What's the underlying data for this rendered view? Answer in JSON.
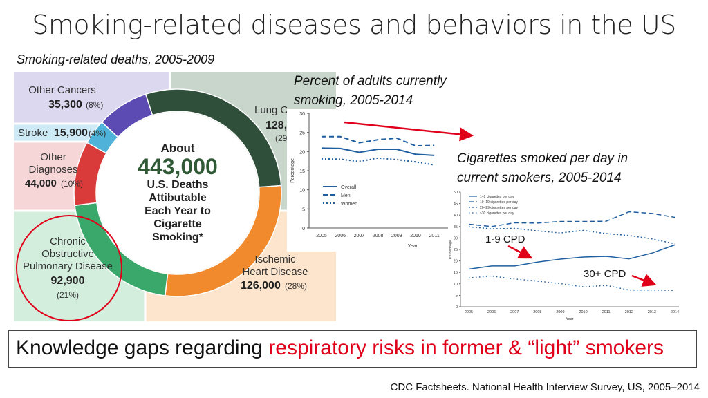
{
  "title": "Smoking-related diseases and behaviors in the US",
  "captions": {
    "deaths": "Smoking-related deaths, 2005-2009",
    "adults": "Percent of adults currently smoking, 2005-2014",
    "cigs": "Cigarettes smoked per day in current smokers, 2005-2014"
  },
  "infographic": {
    "center": {
      "line1": "About",
      "line2": "443,000",
      "line3": "U.S. Deaths",
      "line4": "Attibutable",
      "line5": "Each Year to",
      "line6": "Cigarette",
      "line7": "Smoking*"
    },
    "segments": [
      {
        "label1": "Other Cancers",
        "count": "35,300",
        "pct": "(8%)",
        "color": "#5b4bb3"
      },
      {
        "label1": "Stroke",
        "count": "15,900",
        "pct": "(4%)",
        "color": "#4fb3d9"
      },
      {
        "label1": "Other",
        "label2": "Diagnoses",
        "count": "44,000",
        "pct": "(10%)",
        "color": "#d93a3a"
      },
      {
        "label1": "Chronic",
        "label2": "Obstructive",
        "label3": "Pulmonary Disease",
        "count": "92,900",
        "pct": "(21%)",
        "color": "#3aa86b"
      },
      {
        "label1": "Ischemic",
        "label2": "Heart Disease",
        "count": "126,000",
        "pct": "(28%)",
        "color": "#f08a2c"
      },
      {
        "label1": "Lung C",
        "count": "128,9",
        "pct": "(29",
        "color": "#2f4f3a"
      }
    ]
  },
  "chart_data": [
    {
      "type": "line",
      "title": "Percent of adults currently smoking, 2005-2014",
      "xlabel": "Year",
      "ylabel": "Percentage",
      "x": [
        2005,
        2006,
        2007,
        2008,
        2009,
        2010,
        2011
      ],
      "ylim": [
        0,
        30
      ],
      "yticks": [
        0,
        5,
        10,
        15,
        20,
        25,
        30
      ],
      "series": [
        {
          "name": "Overall",
          "style": "solid",
          "values": [
            20.9,
            20.8,
            19.8,
            20.6,
            20.6,
            19.3,
            19.0
          ]
        },
        {
          "name": "Men",
          "style": "dashed",
          "values": [
            23.9,
            23.9,
            22.3,
            23.1,
            23.5,
            21.5,
            21.6
          ]
        },
        {
          "name": "Women",
          "style": "dotted",
          "values": [
            18.1,
            18.0,
            17.4,
            18.3,
            17.9,
            17.3,
            16.5
          ]
        }
      ]
    },
    {
      "type": "line",
      "title": "Cigarettes smoked per day in current smokers, 2005-2014",
      "xlabel": "Year",
      "ylabel": "Percentage",
      "x": [
        2005,
        2006,
        2007,
        2008,
        2009,
        2010,
        2011,
        2012,
        2013,
        2014
      ],
      "ylim": [
        0,
        50
      ],
      "yticks": [
        0,
        5,
        10,
        15,
        20,
        25,
        30,
        35,
        40,
        45,
        50
      ],
      "series": [
        {
          "name": "1–9 cigarettes per day",
          "style": "solid",
          "values": [
            16.4,
            17.8,
            17.8,
            19.5,
            20.8,
            21.7,
            22.0,
            20.9,
            23.4,
            27.0
          ]
        },
        {
          "name": "10–19 cigarettes per day",
          "style": "dashed",
          "values": [
            36.0,
            35.0,
            36.6,
            36.5,
            37.2,
            37.2,
            37.3,
            41.4,
            40.7,
            39.0
          ]
        },
        {
          "name": "20–29 cigarettes per day",
          "style": "dotted",
          "values": [
            34.9,
            34.0,
            34.2,
            33.1,
            32.2,
            33.3,
            31.9,
            31.1,
            29.6,
            27.5
          ]
        },
        {
          "name": "≥30 cigarettes per day",
          "style": "dotted-sparse",
          "values": [
            12.6,
            13.4,
            12.1,
            11.2,
            10.1,
            8.7,
            9.3,
            7.3,
            7.3,
            7.1
          ]
        }
      ]
    }
  ],
  "annotations": {
    "cpd_low": "1-9 CPD",
    "cpd_high": "30+ CPD",
    "arrow_color": "#e0001a"
  },
  "knowledge_gap": {
    "prefix": "Knowledge gaps regarding ",
    "highlight": "respiratory risks in former & “light” smokers"
  },
  "source": "CDC Factsheets. National Health Interview Survey, US, 2005–2014"
}
